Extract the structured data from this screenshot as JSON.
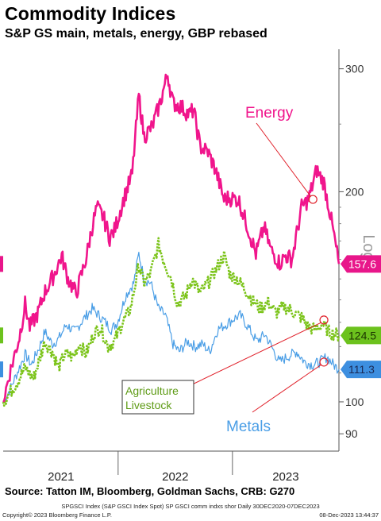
{
  "header": {
    "title": "Commodity Indices",
    "subtitle": "S&P GS main, metals, energy, GBP rebased"
  },
  "footer": {
    "source": "Source: Tatton IM, Bloomberg, Goldman Sachs, CRB: G270",
    "index_line": "SPGSCI Index (S&P GSCI Index Spot) SP GSCI comm indxs shor  Daily 30DEC2020-07DEC2023",
    "copyright": "Copyright© 2023 Bloomberg Finance L.P.",
    "timestamp": "08-Dec-2023 13:44:37"
  },
  "colors": {
    "energy": "#f0158c",
    "agriculture": "#7cc41b",
    "metals": "#4a9ee6",
    "energy_tag": "#e8168a",
    "agri_tag": "#6cc21d",
    "metals_tag": "#3d8fe0",
    "annotation": "#e0202a"
  },
  "chart_data": {
    "type": "line",
    "title": "Commodity Indices",
    "subtitle": "S&P GS main, metals, energy, GBP rebased",
    "x_range": [
      "2020-12-30",
      "2023-12-07"
    ],
    "x_tick_labels": [
      "2021",
      "2022",
      "2023"
    ],
    "y_scale": "log",
    "ylabel": "Log",
    "y_ticks": [
      90,
      100,
      200,
      300
    ],
    "ylim": [
      85,
      320
    ],
    "grid": false,
    "series": [
      {
        "name": "Energy",
        "last_value": "157.6",
        "points": [
          [
            "2020-12-30",
            100
          ],
          [
            "2021-01-20",
            110
          ],
          [
            "2021-02-20",
            124
          ],
          [
            "2021-03-10",
            138
          ],
          [
            "2021-03-25",
            128
          ],
          [
            "2021-04-20",
            134
          ],
          [
            "2021-05-10",
            143
          ],
          [
            "2021-06-10",
            152
          ],
          [
            "2021-07-05",
            162
          ],
          [
            "2021-07-25",
            150
          ],
          [
            "2021-08-20",
            143
          ],
          [
            "2021-09-20",
            160
          ],
          [
            "2021-10-10",
            178
          ],
          [
            "2021-10-25",
            190
          ],
          [
            "2021-11-15",
            184
          ],
          [
            "2021-12-05",
            172
          ],
          [
            "2021-12-20",
            176
          ],
          [
            "2022-01-20",
            196
          ],
          [
            "2022-02-15",
            212
          ],
          [
            "2022-03-08",
            275
          ],
          [
            "2022-03-25",
            240
          ],
          [
            "2022-04-20",
            248
          ],
          [
            "2022-05-15",
            268
          ],
          [
            "2022-06-08",
            295
          ],
          [
            "2022-06-25",
            268
          ],
          [
            "2022-07-20",
            265
          ],
          [
            "2022-08-15",
            258
          ],
          [
            "2022-08-30",
            262
          ],
          [
            "2022-09-20",
            232
          ],
          [
            "2022-10-15",
            228
          ],
          [
            "2022-11-08",
            215
          ],
          [
            "2022-12-05",
            195
          ],
          [
            "2022-12-20",
            196
          ],
          [
            "2023-01-20",
            195
          ],
          [
            "2023-02-15",
            180
          ],
          [
            "2023-03-17",
            163
          ],
          [
            "2023-04-12",
            178
          ],
          [
            "2023-05-04",
            165
          ],
          [
            "2023-06-01",
            158
          ],
          [
            "2023-06-20",
            162
          ],
          [
            "2023-07-10",
            160
          ],
          [
            "2023-08-10",
            190
          ],
          [
            "2023-09-01",
            195
          ],
          [
            "2023-09-27",
            215
          ],
          [
            "2023-10-20",
            206
          ],
          [
            "2023-11-10",
            185
          ],
          [
            "2023-12-07",
            157.6
          ]
        ]
      },
      {
        "name": "Agriculture Livestock",
        "last_value": "124.5",
        "points": [
          [
            "2020-12-30",
            100
          ],
          [
            "2021-01-20",
            103
          ],
          [
            "2021-02-15",
            107
          ],
          [
            "2021-03-10",
            112
          ],
          [
            "2021-04-05",
            108
          ],
          [
            "2021-04-25",
            115
          ],
          [
            "2021-05-12",
            122
          ],
          [
            "2021-06-05",
            118
          ],
          [
            "2021-06-25",
            112
          ],
          [
            "2021-07-15",
            117
          ],
          [
            "2021-08-10",
            116
          ],
          [
            "2021-08-30",
            121
          ],
          [
            "2021-09-20",
            117
          ],
          [
            "2021-10-15",
            125
          ],
          [
            "2021-11-05",
            128
          ],
          [
            "2021-11-30",
            120
          ],
          [
            "2021-12-20",
            122
          ],
          [
            "2022-01-15",
            130
          ],
          [
            "2022-02-10",
            136
          ],
          [
            "2022-03-08",
            157
          ],
          [
            "2022-03-25",
            148
          ],
          [
            "2022-04-15",
            153
          ],
          [
            "2022-05-10",
            168
          ],
          [
            "2022-05-25",
            160
          ],
          [
            "2022-06-20",
            150
          ],
          [
            "2022-07-10",
            138
          ],
          [
            "2022-08-05",
            142
          ],
          [
            "2022-08-25",
            150
          ],
          [
            "2022-09-20",
            143
          ],
          [
            "2022-10-15",
            148
          ],
          [
            "2022-11-10",
            155
          ],
          [
            "2022-12-05",
            162
          ],
          [
            "2022-12-25",
            152
          ],
          [
            "2023-01-15",
            150
          ],
          [
            "2023-02-10",
            145
          ],
          [
            "2023-03-05",
            140
          ],
          [
            "2023-03-30",
            136
          ],
          [
            "2023-04-25",
            139
          ],
          [
            "2023-05-20",
            134
          ],
          [
            "2023-06-15",
            137
          ],
          [
            "2023-07-10",
            135
          ],
          [
            "2023-08-10",
            132
          ],
          [
            "2023-09-01",
            128
          ],
          [
            "2023-09-20",
            127
          ],
          [
            "2023-10-15",
            129
          ],
          [
            "2023-11-05",
            126
          ],
          [
            "2023-12-07",
            124.5
          ]
        ]
      },
      {
        "name": "Metals",
        "last_value": "111.3",
        "points": [
          [
            "2020-12-30",
            100
          ],
          [
            "2021-01-20",
            104
          ],
          [
            "2021-02-20",
            112
          ],
          [
            "2021-03-10",
            117
          ],
          [
            "2021-03-30",
            113
          ],
          [
            "2021-04-25",
            120
          ],
          [
            "2021-05-12",
            126
          ],
          [
            "2021-06-05",
            121
          ],
          [
            "2021-06-25",
            123
          ],
          [
            "2021-07-20",
            129
          ],
          [
            "2021-08-15",
            126
          ],
          [
            "2021-09-10",
            131
          ],
          [
            "2021-10-10",
            136
          ],
          [
            "2021-10-25",
            134
          ],
          [
            "2021-11-15",
            131
          ],
          [
            "2021-12-10",
            127
          ],
          [
            "2021-12-30",
            130
          ],
          [
            "2022-01-25",
            142
          ],
          [
            "2022-02-20",
            148
          ],
          [
            "2022-03-08",
            163
          ],
          [
            "2022-03-25",
            150
          ],
          [
            "2022-04-15",
            148
          ],
          [
            "2022-05-10",
            136
          ],
          [
            "2022-06-01",
            133
          ],
          [
            "2022-06-25",
            121
          ],
          [
            "2022-07-15",
            118
          ],
          [
            "2022-08-10",
            122
          ],
          [
            "2022-09-05",
            120
          ],
          [
            "2022-09-28",
            121
          ],
          [
            "2022-10-20",
            118
          ],
          [
            "2022-11-15",
            127
          ],
          [
            "2022-12-10",
            129
          ],
          [
            "2023-01-10",
            132
          ],
          [
            "2023-01-26",
            133
          ],
          [
            "2023-02-20",
            128
          ],
          [
            "2023-03-20",
            122
          ],
          [
            "2023-04-15",
            125
          ],
          [
            "2023-05-10",
            119
          ],
          [
            "2023-05-31",
            114
          ],
          [
            "2023-06-25",
            116
          ],
          [
            "2023-07-25",
            118
          ],
          [
            "2023-08-20",
            114
          ],
          [
            "2023-09-15",
            113
          ],
          [
            "2023-10-05",
            114
          ],
          [
            "2023-10-30",
            116
          ],
          [
            "2023-11-20",
            113
          ],
          [
            "2023-12-07",
            111.3
          ]
        ]
      }
    ],
    "annotations": [
      {
        "text": "Energy",
        "series": "Energy",
        "at": [
          "2023-09-15",
          195
        ]
      },
      {
        "text": "Agriculture\nLivestock",
        "series": "Agriculture Livestock",
        "at": [
          "2023-10-20",
          131
        ]
      },
      {
        "text": "Metals",
        "series": "Metals",
        "at": [
          "2023-10-20",
          114
        ]
      }
    ]
  }
}
